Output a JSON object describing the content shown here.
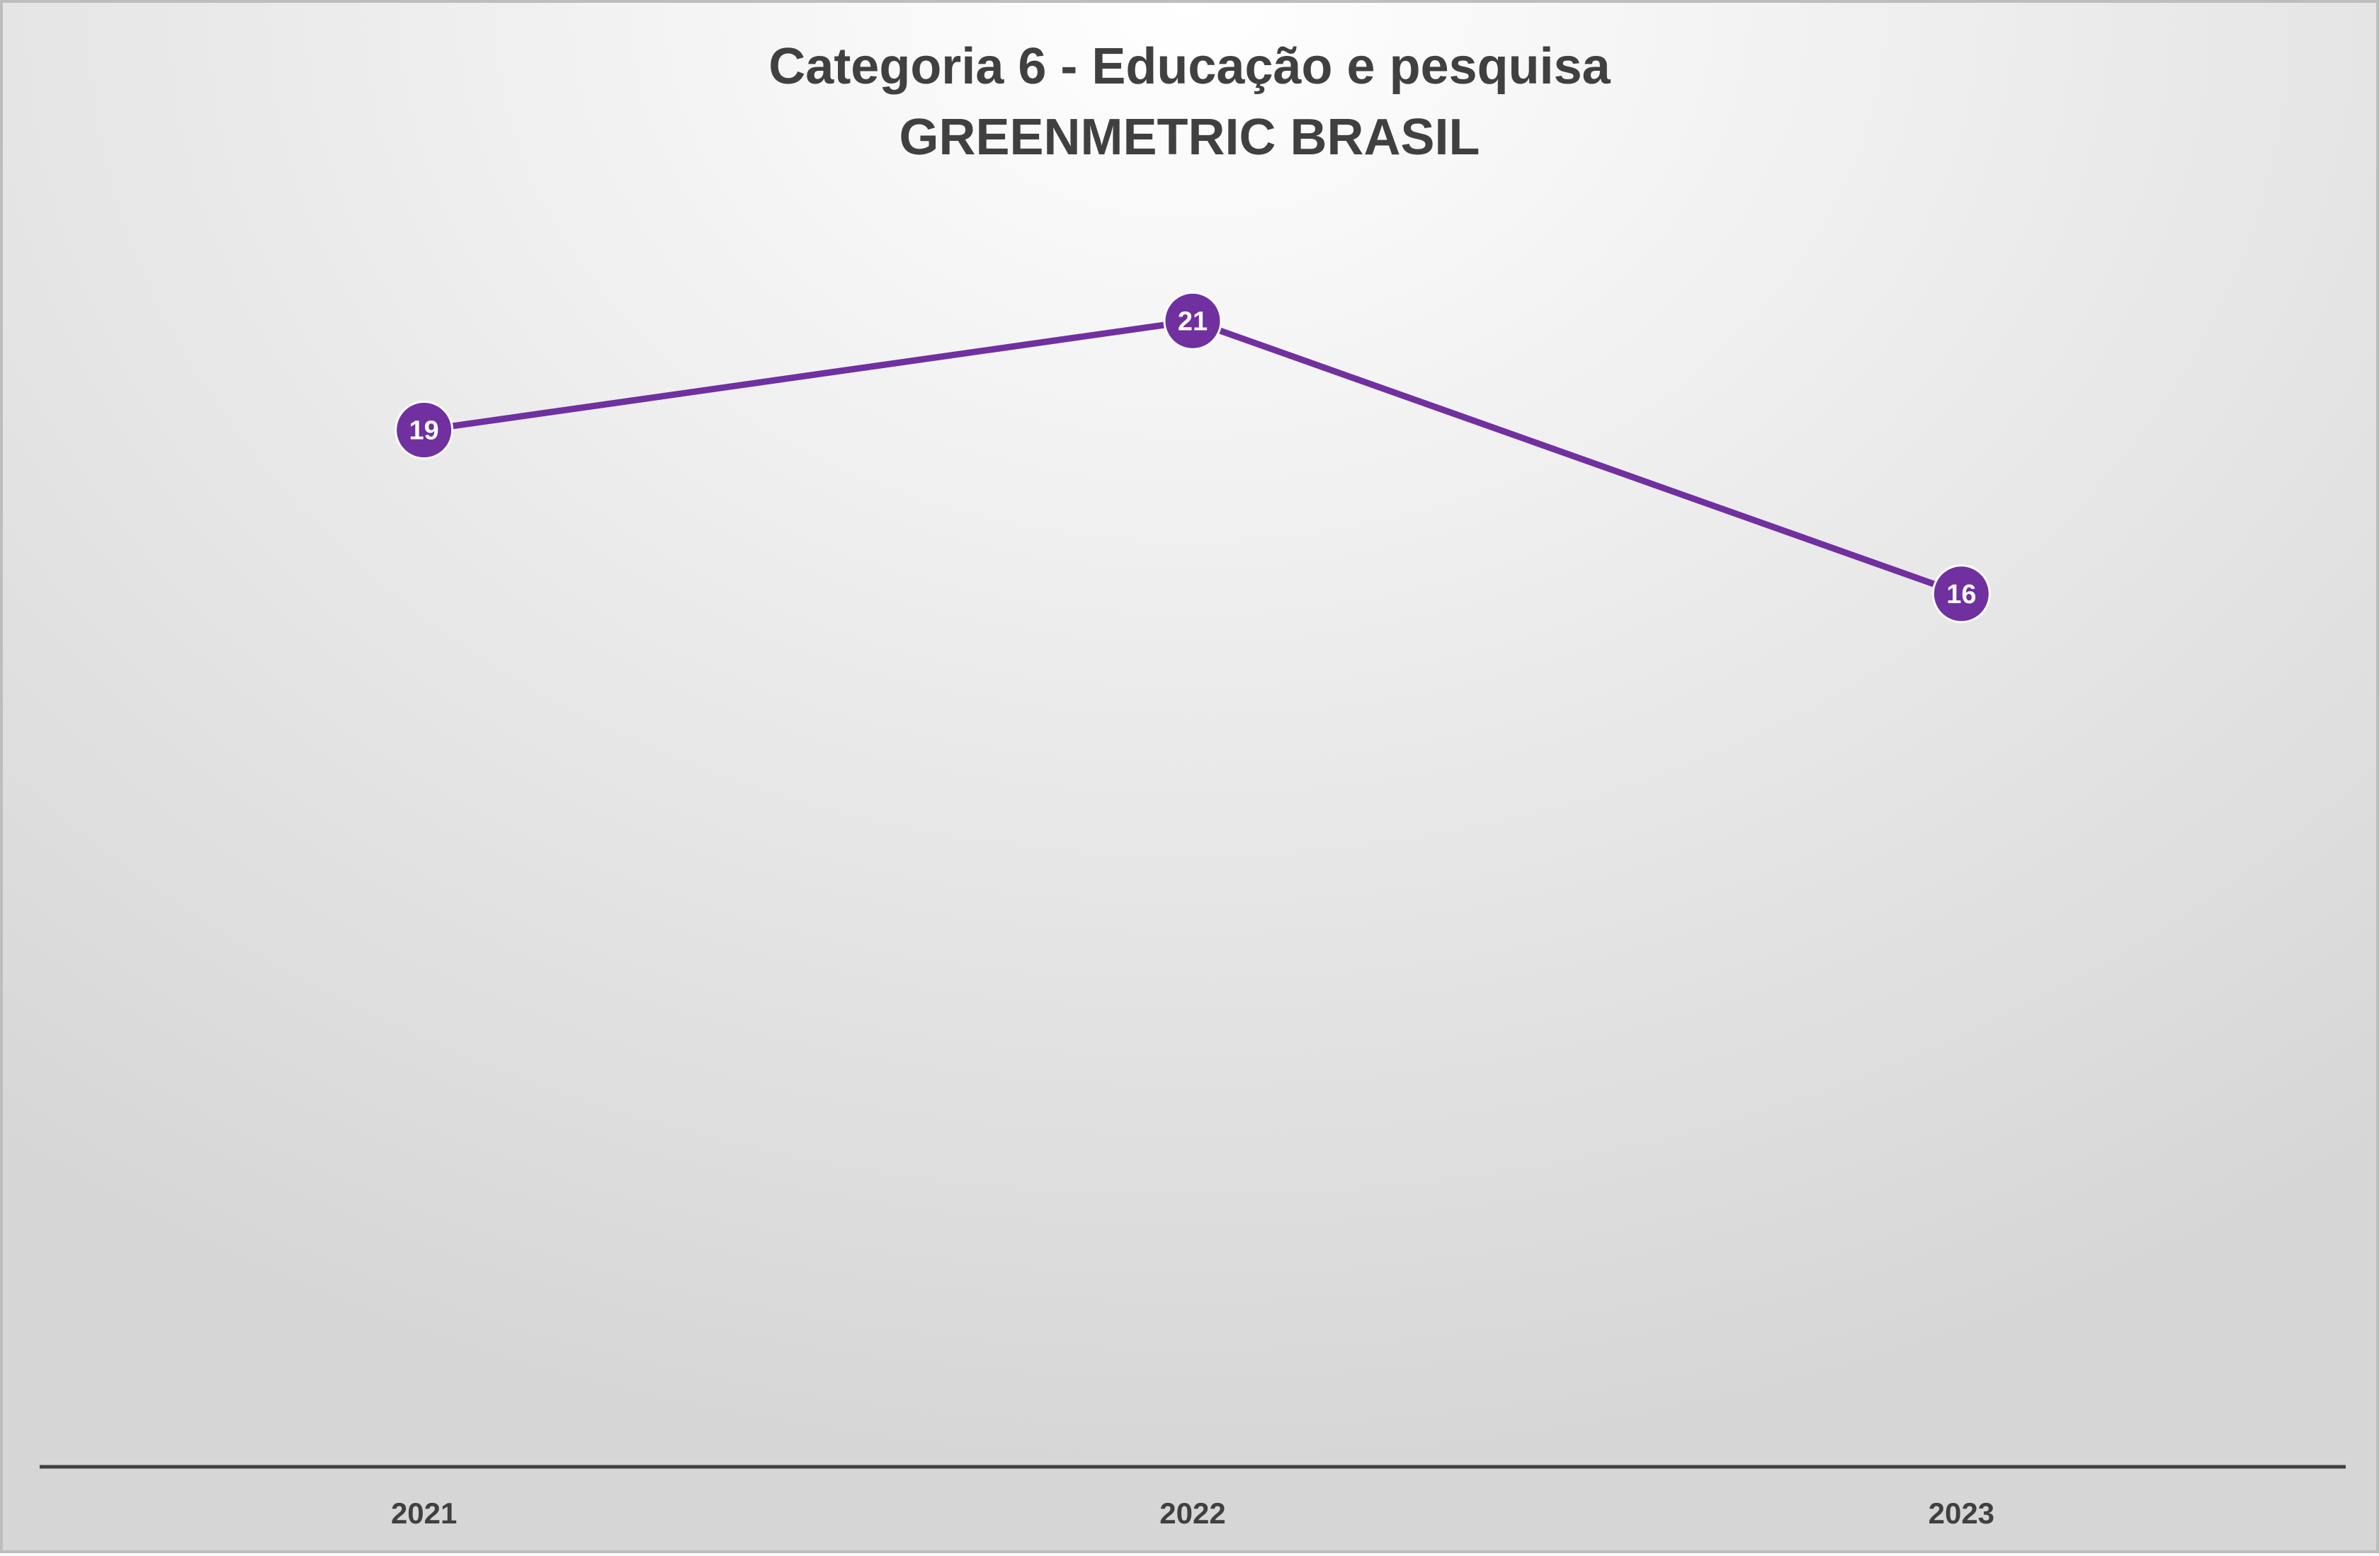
{
  "chart_data": {
    "type": "line",
    "title": "Categoria 6 - Educação e pesquisa",
    "subtitle": "GREENMETRIC BRASIL",
    "categories": [
      "2021",
      "2022",
      "2023"
    ],
    "series": [
      {
        "values": [
          19,
          21,
          16
        ],
        "color": "#7030A0"
      }
    ],
    "xlabel": "",
    "ylabel": "",
    "ylim": [
      0,
      26
    ],
    "grid": false,
    "legend": "none",
    "data_labels": true
  },
  "colors": {
    "series": "#7030A0",
    "axis": "#404040",
    "title": "#404040",
    "label_text": "#ffffff"
  }
}
